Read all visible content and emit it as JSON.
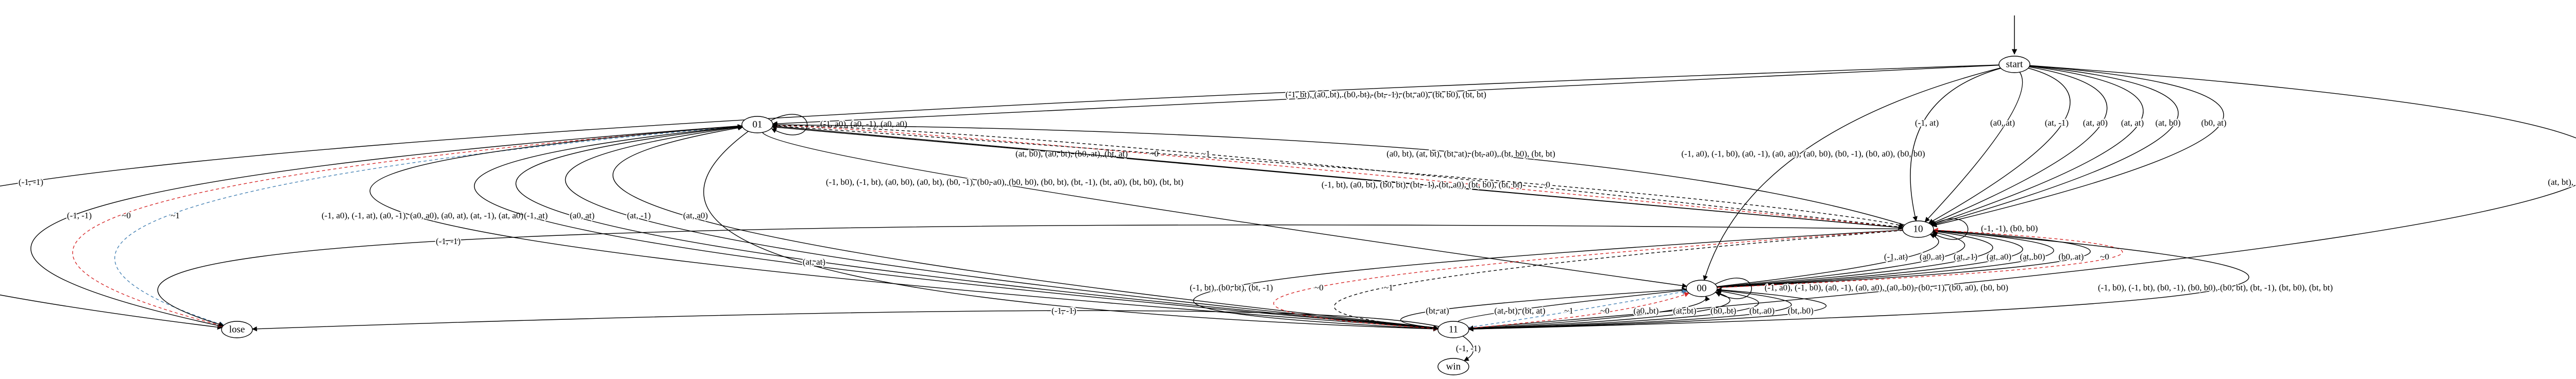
{
  "nodes": [
    {
      "label": "start"
    },
    {
      "label": "01"
    },
    {
      "label": "10"
    },
    {
      "label": "00"
    },
    {
      "label": "11"
    },
    {
      "label": "lose"
    },
    {
      "label": "win"
    }
  ],
  "edges": [
    {
      "from": "start",
      "to": "lose",
      "label": "(-1, -1)",
      "color": "#000000",
      "style": "solid"
    },
    {
      "from": "start",
      "to": "01",
      "label": "(-1, bt), (a0, bt), (b0, bt), (bt, -1), (bt, a0), (bt, b0), (bt, bt)",
      "color": "#000000",
      "style": "solid"
    },
    {
      "from": "start",
      "to": "00",
      "label": "(-1, a0), (-1, b0), (a0, -1), (a0, a0), (a0, b0), (b0, -1), (b0, a0), (b0, b0)",
      "color": "#000000",
      "style": "solid"
    },
    {
      "from": "start",
      "to": "10",
      "label": "(-1, at)",
      "color": "#000000",
      "style": "solid"
    },
    {
      "from": "start",
      "to": "10",
      "label": "(a0, at)",
      "color": "#000000",
      "style": "solid"
    },
    {
      "from": "start",
      "to": "10",
      "label": "(at, -1)",
      "color": "#000000",
      "style": "solid"
    },
    {
      "from": "start",
      "to": "10",
      "label": "(at, a0)",
      "color": "#000000",
      "style": "solid"
    },
    {
      "from": "start",
      "to": "10",
      "label": "(at, at)",
      "color": "#000000",
      "style": "solid"
    },
    {
      "from": "start",
      "to": "10",
      "label": "(at, b0)",
      "color": "#000000",
      "style": "solid"
    },
    {
      "from": "start",
      "to": "10",
      "label": "(b0, at)",
      "color": "#000000",
      "style": "solid"
    },
    {
      "from": "start",
      "to": "11",
      "label": "(at, bt), (bt, at)",
      "color": "#000000",
      "style": "solid"
    },
    {
      "from": "01",
      "to": "01",
      "label": "(-1, a0), (a0, -1), (a0, a0)",
      "color": "#000000",
      "style": "solid"
    },
    {
      "from": "01",
      "to": "lose",
      "label": "(-1, -1)",
      "color": "#000000",
      "style": "solid"
    },
    {
      "from": "01",
      "to": "lose",
      "label": "~0",
      "color": "#d62728",
      "style": "dashed"
    },
    {
      "from": "01",
      "to": "lose",
      "label": "~1",
      "color": "#4682b4",
      "style": "dashed"
    },
    {
      "from": "01",
      "to": "11",
      "label": "(-1, a0), (-1, at), (a0, -1), (a0, a0), (a0, at), (at, -1), (at, a0)",
      "color": "#000000",
      "style": "solid"
    },
    {
      "from": "11",
      "to": "01",
      "label": "(-1, at)",
      "color": "#000000",
      "style": "solid"
    },
    {
      "from": "11",
      "to": "01",
      "label": "(a0, at)",
      "color": "#000000",
      "style": "solid"
    },
    {
      "from": "11",
      "to": "01",
      "label": "(at, -1)",
      "color": "#000000",
      "style": "solid"
    },
    {
      "from": "11",
      "to": "01",
      "label": "(at, a0)",
      "color": "#000000",
      "style": "solid"
    },
    {
      "from": "01",
      "to": "11",
      "label": "(at, at)",
      "color": "#000000",
      "style": "solid"
    },
    {
      "from": "01",
      "to": "00",
      "label": "(-1, b0), (-1, bt), (a0, b0), (a0, bt), (b0, -1), (b0, a0), (b0, b0), (b0, bt), (bt, -1), (bt, a0), (bt, b0), (bt, bt)",
      "color": "#000000",
      "style": "solid"
    },
    {
      "from": "10",
      "to": "01",
      "label": "(at, b0), (a0, bt), (b0, at), (bt, at)",
      "color": "#000000",
      "style": "solid"
    },
    {
      "from": "10",
      "to": "01",
      "label": "~0",
      "color": "#d62728",
      "style": "dashed"
    },
    {
      "from": "10",
      "to": "01",
      "label": "~1",
      "color": "#000000",
      "style": "dashed"
    },
    {
      "from": "10",
      "to": "01",
      "label": "(a0, bt), (at, bt), (bt, at), (bt, a0), (bt, b0), (bt, bt)",
      "color": "#000000",
      "style": "solid"
    },
    {
      "from": "10",
      "to": "10",
      "label": "(-1, -1), (b0, b0)",
      "color": "#000000",
      "style": "solid"
    },
    {
      "from": "10",
      "to": "lose",
      "label": "(-1, -1)",
      "color": "#000000",
      "style": "solid"
    },
    {
      "from": "00",
      "to": "10",
      "label": "(-1, at)",
      "color": "#000000",
      "style": "solid"
    },
    {
      "from": "00",
      "to": "10",
      "label": "(a0, at)",
      "color": "#000000",
      "style": "solid"
    },
    {
      "from": "00",
      "to": "10",
      "label": "(at, -1)",
      "color": "#000000",
      "style": "solid"
    },
    {
      "from": "00",
      "to": "10",
      "label": "(at, a0)",
      "color": "#000000",
      "style": "solid"
    },
    {
      "from": "00",
      "to": "10",
      "label": "(at, b0)",
      "color": "#000000",
      "style": "solid"
    },
    {
      "from": "00",
      "to": "10",
      "label": "(b0, at)",
      "color": "#000000",
      "style": "solid"
    },
    {
      "from": "00",
      "to": "10",
      "label": "~0",
      "color": "#d62728",
      "style": "dashed"
    },
    {
      "from": "01",
      "to": "10",
      "label": "(-1, bt), (a0, bt), (b0, bt), (bt, -1), (bt, a0), (bt, b0), (bt, bt)",
      "color": "#000000",
      "style": "solid"
    },
    {
      "from": "01",
      "to": "10",
      "label": "~0",
      "color": "#000000",
      "style": "dashed"
    },
    {
      "from": "10",
      "to": "11",
      "label": "(-1, bt), (b0, bt), (bt, -1)",
      "color": "#000000",
      "style": "solid"
    },
    {
      "from": "10",
      "to": "11",
      "label": "~0",
      "color": "#d62728",
      "style": "dashed"
    },
    {
      "from": "10",
      "to": "11",
      "label": "~1",
      "color": "#000000",
      "style": "dashed"
    },
    {
      "from": "00",
      "to": "00",
      "label": "(-1, a0), (-1, b0), (a0, -1), (a0, a0), (a0, b0), (b0, -1), (b0, a0), (b0, b0)",
      "color": "#000000",
      "style": "solid"
    },
    {
      "from": "11",
      "to": "00",
      "label": "(bt, at)",
      "color": "#000000",
      "style": "solid"
    },
    {
      "from": "11",
      "to": "00",
      "label": "(at, bt), (bt, at)",
      "color": "#000000",
      "style": "solid"
    },
    {
      "from": "11",
      "to": "00",
      "label": "~1",
      "color": "#4682b4",
      "style": "dashed"
    },
    {
      "from": "11",
      "to": "00",
      "label": "~0",
      "color": "#d62728",
      "style": "dashed"
    },
    {
      "from": "11",
      "to": "00",
      "label": "(a0, bt)",
      "color": "#000000",
      "style": "solid"
    },
    {
      "from": "11",
      "to": "00",
      "label": "(at, bt)",
      "color": "#000000",
      "style": "solid"
    },
    {
      "from": "11",
      "to": "00",
      "label": "(b0, bt)",
      "color": "#000000",
      "style": "solid"
    },
    {
      "from": "11",
      "to": "00",
      "label": "(bt, a0)",
      "color": "#000000",
      "style": "solid"
    },
    {
      "from": "11",
      "to": "00",
      "label": "(bt, b0)",
      "color": "#000000",
      "style": "solid"
    },
    {
      "from": "11",
      "to": "lose",
      "label": "(-1, -1)",
      "color": "#000000",
      "style": "solid"
    },
    {
      "from": "11",
      "to": "win",
      "label": "(-1, -1)",
      "color": "#000000",
      "style": "solid"
    },
    {
      "from": "10",
      "to": "11",
      "label": "(-1, b0), (-1, bt), (b0, -1), (b0, b0), (b0, bt), (bt, -1), (bt, b0), (bt, bt)",
      "color": "#000000",
      "style": "solid"
    }
  ]
}
